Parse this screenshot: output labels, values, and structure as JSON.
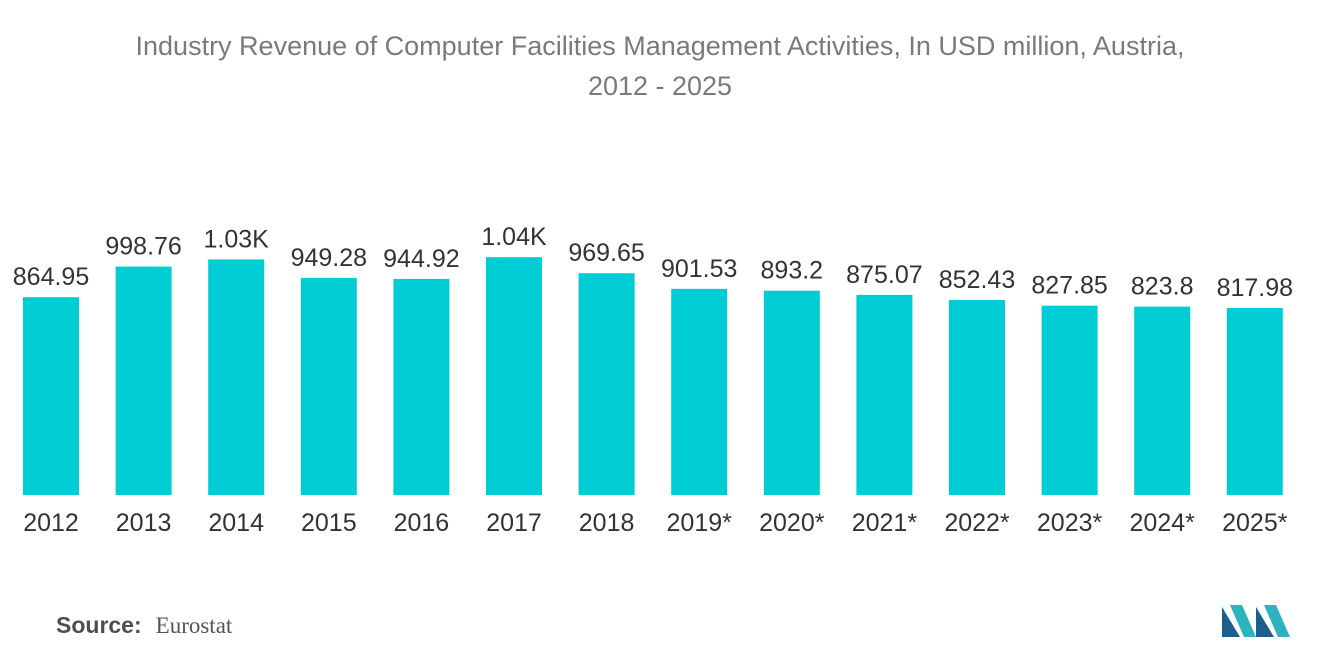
{
  "chart_data": {
    "type": "bar",
    "title_lines": [
      "Industry Revenue of Computer Facilities Management Activities, In USD million, Austria,",
      "2012 - 2025"
    ],
    "categories": [
      "2012",
      "2013",
      "2014",
      "2015",
      "2016",
      "2017",
      "2018",
      "2019*",
      "2020*",
      "2021*",
      "2022*",
      "2023*",
      "2024*",
      "2025*"
    ],
    "values": [
      864.95,
      998.76,
      1030,
      949.28,
      944.92,
      1040,
      969.65,
      901.53,
      893.2,
      875.07,
      852.43,
      827.85,
      823.8,
      817.98
    ],
    "labels": [
      "864.95",
      "998.76",
      "1.03K",
      "949.28",
      "944.92",
      "1.04K",
      "969.65",
      "901.53",
      "893.2",
      "875.07",
      "852.43",
      "827.85",
      "823.8",
      "817.98"
    ],
    "bar_color": "#00ccd3",
    "ylim": [
      0,
      1100
    ],
    "grid": false,
    "legend": "none"
  },
  "footer": {
    "source_label": "Source:",
    "source_value": "Eurostat"
  },
  "logo": {
    "icon": "mordor-intelligence-logo",
    "colors": [
      "#1b5f8c",
      "#2bb3c0"
    ]
  }
}
